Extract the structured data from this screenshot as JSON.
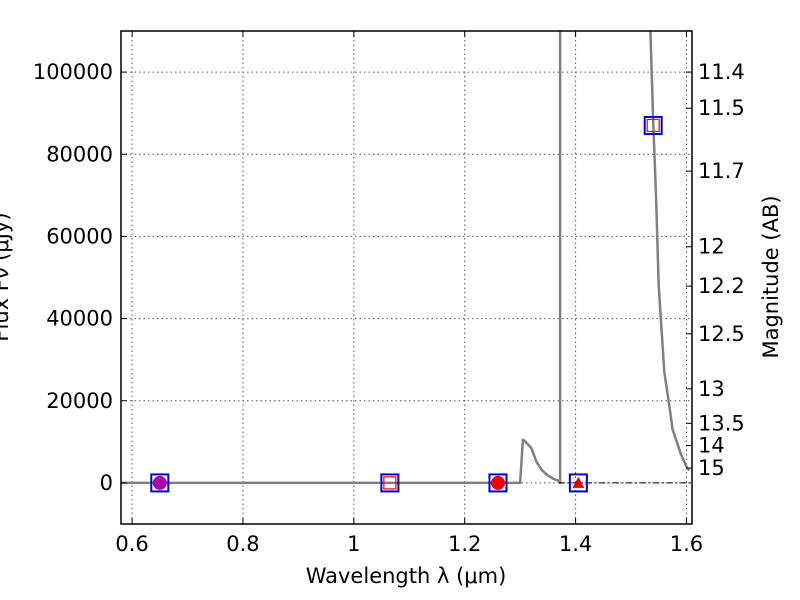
{
  "chart_data": {
    "type": "scatter",
    "title": "",
    "xlabel": "Wavelength  λ (μm)",
    "ylabel": "Flux  Fν  (μJy)",
    "y2label": "Magnitude (AB)",
    "xlim": [
      0.58,
      1.61
    ],
    "ylim": [
      -10000,
      110000
    ],
    "grid": true,
    "xticks": [
      0.6,
      0.8,
      1.0,
      1.2,
      1.4,
      1.6
    ],
    "xticklabels": [
      "0.6",
      "0.8",
      "1",
      "1.2",
      "1.4",
      "1.6"
    ],
    "yticks": [
      0,
      20000,
      40000,
      60000,
      80000,
      100000
    ],
    "yticklabels": [
      "0",
      "20000",
      "40000",
      "60000",
      "80000",
      "100000"
    ],
    "y2ticks": [
      {
        "label": "11.4",
        "flux": 100000
      },
      {
        "label": "11.5",
        "flux": 91200
      },
      {
        "label": "11.7",
        "flux": 75900
      },
      {
        "label": "12",
        "flux": 57500
      },
      {
        "label": "12.2",
        "flux": 47900
      },
      {
        "label": "12.5",
        "flux": 36300
      },
      {
        "label": "13",
        "flux": 22900
      },
      {
        "label": "13.5",
        "flux": 14500
      },
      {
        "label": "14",
        "flux": 9100
      },
      {
        "label": "15",
        "flux": 3600
      }
    ],
    "series": [
      {
        "kind": "line",
        "color": "#808080",
        "x": [
          0.58,
          1.3,
          1.305,
          1.31,
          1.32,
          1.33,
          1.34,
          1.35,
          1.36,
          1.37,
          1.372,
          1.372
        ],
        "y": [
          0,
          0,
          10500,
          10000,
          8500,
          5000,
          3000,
          1800,
          1000,
          500,
          0,
          110000
        ]
      },
      {
        "kind": "line",
        "color": "#808080",
        "x": [
          1.535,
          1.54,
          1.545,
          1.55,
          1.56,
          1.57,
          1.575,
          1.58,
          1.59,
          1.6,
          1.605
        ],
        "y": [
          110000,
          88000,
          70000,
          48000,
          27000,
          18000,
          13000,
          11000,
          7000,
          4000,
          3000
        ]
      },
      {
        "kind": "line",
        "color": "#000000",
        "dash": "dashdot",
        "x": [
          1.37,
          1.61
        ],
        "y": [
          0,
          0
        ]
      },
      {
        "kind": "markers",
        "marker": "square-open",
        "color": "#0000cc",
        "x": [
          0.65,
          1.065,
          1.26,
          1.405,
          1.54
        ],
        "y": [
          0,
          0,
          0,
          0,
          87000
        ]
      },
      {
        "kind": "markers",
        "marker": "square-open",
        "color": "#ff0000",
        "x": [
          1.065,
          1.54
        ],
        "y": [
          0,
          87000
        ]
      },
      {
        "kind": "markers",
        "marker": "circle",
        "color": "#ee0000",
        "x": [
          1.26
        ],
        "y": [
          0
        ]
      },
      {
        "kind": "markers",
        "marker": "circle",
        "color": "#aa00aa",
        "x": [
          0.65
        ],
        "y": [
          0
        ]
      },
      {
        "kind": "markers",
        "marker": "triangle",
        "color": "#dd0000",
        "x": [
          1.405
        ],
        "y": [
          0
        ]
      }
    ]
  }
}
